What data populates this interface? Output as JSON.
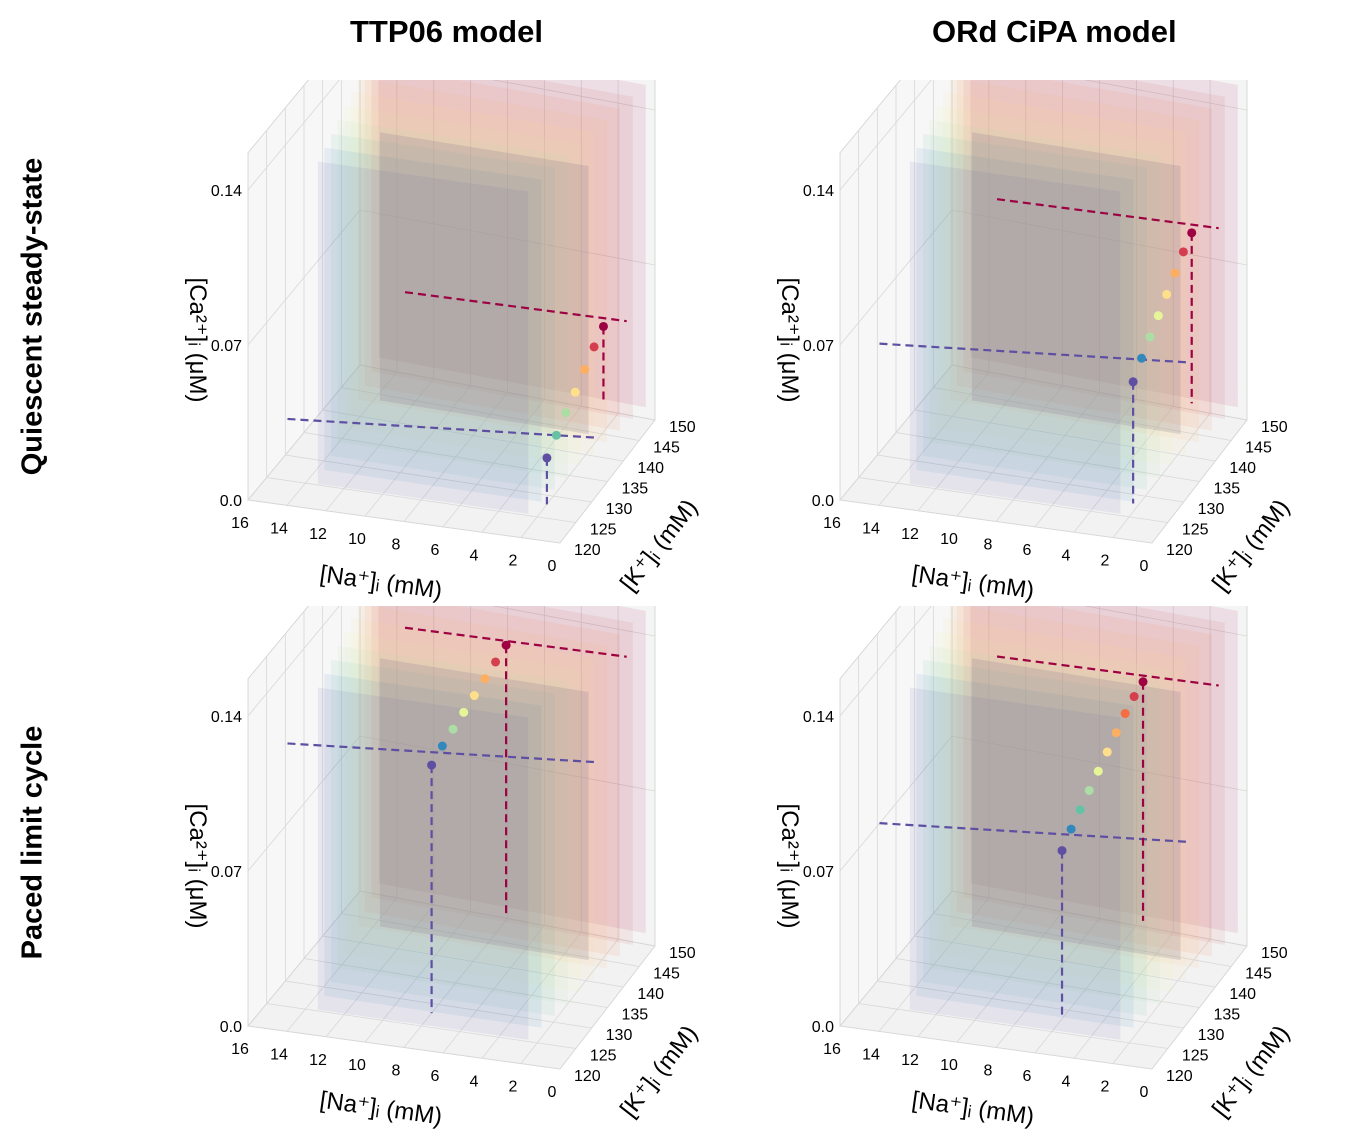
{
  "column_titles": [
    "TTP06 model",
    "ORd CiPA model"
  ],
  "row_titles": [
    "Quiescent steady-state",
    "Paced limit cycle"
  ],
  "colors": {
    "series": [
      "#5e4fa2",
      "#3288bd",
      "#66c2a5",
      "#abdda4",
      "#e6f598",
      "#fee08b",
      "#fdae61",
      "#f46d43",
      "#d53e4f",
      "#9e0142"
    ],
    "dashed_low": "#5e4fa2",
    "dashed_high": "#9e0142"
  },
  "axes_labels": {
    "x": "[Na⁺]ᵢ (mM)",
    "y": "[K⁺]ᵢ (mM)",
    "z": "[Ca²⁺]ᵢ (μM)"
  },
  "chart_data": [
    {
      "type": "scatter",
      "panel": "TTP06 model / Quiescent steady-state",
      "xlabel": "[Na⁺]ᵢ (mM)",
      "ylabel": "[K⁺]ᵢ (mM)",
      "zlabel": "[Ca²⁺]ᵢ (μM)",
      "xticks": [
        "16",
        "14",
        "12",
        "10",
        "8",
        "6",
        "4",
        "2",
        "0"
      ],
      "yticks": [
        "120",
        "125",
        "130",
        "135",
        "140",
        "145",
        "150"
      ],
      "zticks": [
        "0.0",
        "0.07",
        "0.14"
      ],
      "xlim": [
        16,
        0
      ],
      "ylim": [
        120,
        150
      ],
      "zlim": [
        0,
        0.14
      ],
      "points_z": [
        0.021,
        0.027,
        0.033,
        0.038,
        0.044,
        0.05,
        0.055
      ],
      "points_x": [
        2.0,
        1.9,
        1.8,
        1.7,
        1.6,
        1.5,
        1.4
      ]
    },
    {
      "type": "scatter",
      "panel": "ORd CiPA model / Quiescent steady-state",
      "xlabel": "[Na⁺]ᵢ (mM)",
      "ylabel": "[K⁺]ᵢ (mM)",
      "zlabel": "[Ca²⁺]ᵢ (μM)",
      "xticks": [
        "16",
        "14",
        "12",
        "10",
        "8",
        "6",
        "4",
        "2",
        "0"
      ],
      "yticks": [
        "120",
        "125",
        "130",
        "135",
        "140",
        "145",
        "150"
      ],
      "zticks": [
        "0.0",
        "0.07",
        "0.14"
      ],
      "xlim": [
        16,
        0
      ],
      "ylim": [
        120,
        150
      ],
      "zlim": [
        0,
        0.14
      ],
      "points_z": [
        0.055,
        0.062,
        0.068,
        0.074,
        0.08,
        0.086,
        0.092,
        0.097
      ],
      "points_x": [
        2.3,
        2.2,
        2.1,
        2.0,
        1.9,
        1.8,
        1.7,
        1.6
      ]
    },
    {
      "type": "scatter",
      "panel": "TTP06 model / Paced limit cycle",
      "xlabel": "[Na⁺]ᵢ (mM)",
      "ylabel": "[K⁺]ᵢ (mM)",
      "zlabel": "[Ca²⁺]ᵢ (μM)",
      "xticks": [
        "16",
        "14",
        "12",
        "10",
        "8",
        "6",
        "4",
        "2",
        "0"
      ],
      "yticks": [
        "120",
        "125",
        "130",
        "135",
        "140",
        "145",
        "150"
      ],
      "zticks": [
        "0.0",
        "0.07",
        "0.14"
      ],
      "xlim": [
        16,
        0
      ],
      "ylim": [
        120,
        150
      ],
      "zlim": [
        0,
        0.14
      ],
      "points_z": [
        0.112,
        0.117,
        0.121,
        0.125,
        0.129,
        0.133,
        0.137,
        0.141
      ],
      "points_x": [
        8.0,
        7.8,
        7.6,
        7.4,
        7.2,
        7.0,
        6.8,
        6.6
      ]
    },
    {
      "type": "scatter",
      "panel": "ORd CiPA model / Paced limit cycle",
      "xlabel": "[Na⁺]ᵢ (mM)",
      "ylabel": "[K⁺]ᵢ (mM)",
      "zlabel": "[Ca²⁺]ᵢ (μM)",
      "xticks": [
        "16",
        "14",
        "12",
        "10",
        "8",
        "6",
        "4",
        "2",
        "0"
      ],
      "yticks": [
        "120",
        "125",
        "130",
        "135",
        "140",
        "145",
        "150"
      ],
      "zticks": [
        "0.0",
        "0.07",
        "0.14"
      ],
      "xlim": [
        16,
        0
      ],
      "ylim": [
        120,
        150
      ],
      "zlim": [
        0,
        0.14
      ],
      "points_z": [
        0.076,
        0.083,
        0.089,
        0.095,
        0.101,
        0.107,
        0.113,
        0.119,
        0.124,
        0.128
      ],
      "points_x": [
        6.0,
        5.8,
        5.6,
        5.4,
        5.2,
        5.0,
        4.8,
        4.6,
        4.4,
        4.2
      ]
    }
  ]
}
